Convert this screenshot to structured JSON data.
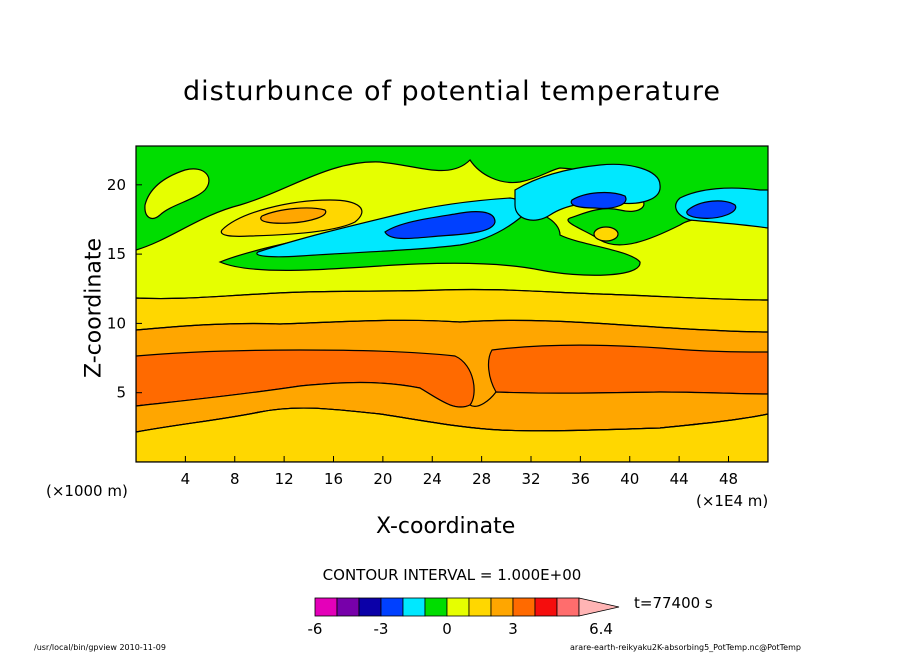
{
  "chart_data": {
    "type": "heatmap",
    "title": "disturbunce of potential temperature",
    "xlabel": "X-coordinate",
    "ylabel": "Z-coordinate",
    "x_unit_label": "(×1E4 m)",
    "z_unit_label": "(×1000 m)",
    "xlim": [
      0,
      51.2
    ],
    "ylim": [
      0,
      22.8
    ],
    "x_ticks": [
      "4",
      "8",
      "12",
      "16",
      "20",
      "24",
      "28",
      "32",
      "36",
      "40",
      "44",
      "48"
    ],
    "y_ticks": [
      "5",
      "10",
      "15",
      "20"
    ],
    "contour_interval_text": "CONTOUR INTERVAL = 1.000E+00",
    "colorbar": {
      "levels": [
        -6,
        -5,
        -4,
        -3,
        -2,
        -1,
        0,
        1,
        2,
        3,
        4,
        5,
        6,
        6.4
      ],
      "tick_labels": [
        "-6",
        "-3",
        "0",
        "3",
        "6.4"
      ],
      "colors": [
        "#e400b9",
        "#7700aa",
        "#0b00a8",
        "#0040ff",
        "#00e8ff",
        "#00dd00",
        "#e6ff00",
        "#ffd700",
        "#ffa600",
        "#ff6a00",
        "#f50d0d",
        "#ff6d6d",
        "#ffb4b4"
      ]
    },
    "time_label": "t=77400 s",
    "bands": [
      {
        "z_range": [
          0,
          2.2
        ],
        "level_range": [
          1,
          2
        ]
      },
      {
        "z_range": [
          2.2,
          4
        ],
        "level_range": [
          2,
          3
        ]
      },
      {
        "z_range": [
          4,
          8
        ],
        "level_range": [
          3,
          4
        ]
      },
      {
        "z_range": [
          8,
          10
        ],
        "level_range": [
          2,
          3
        ]
      },
      {
        "z_range": [
          10,
          12
        ],
        "level_range": [
          1,
          2
        ]
      },
      {
        "z_range": [
          12,
          15.5
        ],
        "level_range": [
          0,
          1
        ]
      },
      {
        "z_range": [
          15.5,
          22.8
        ],
        "level_range": [
          -1,
          0
        ]
      }
    ],
    "features": [
      {
        "x": 13.5,
        "z": 17.5,
        "level_range": [
          2,
          3
        ]
      },
      {
        "x": 24.5,
        "z": 16.8,
        "level_range": [
          -3,
          -2
        ]
      },
      {
        "x": 36.5,
        "z": 18.8,
        "level_range": [
          -4,
          -3
        ]
      },
      {
        "x": 46.5,
        "z": 18.2,
        "level_range": [
          -4,
          -3
        ]
      },
      {
        "x": 38.5,
        "z": 16.6,
        "level_range": [
          1,
          2
        ]
      }
    ]
  },
  "footer": {
    "left": "/usr/local/bin/gpview  2010-11-09",
    "right": "arare-earth-reikyaku2K-absorbing5_PotTemp.nc@PotTemp"
  }
}
